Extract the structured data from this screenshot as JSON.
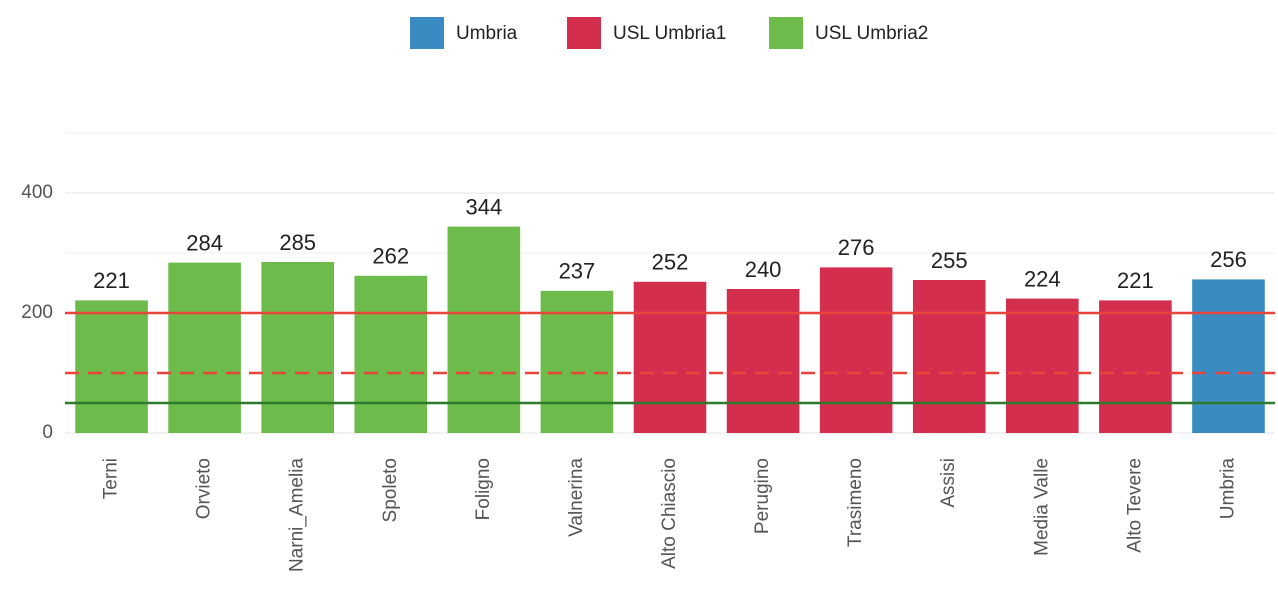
{
  "chart_data": {
    "type": "bar",
    "categories": [
      "Terni",
      "Orvieto",
      "Narni_Amelia",
      "Spoleto",
      "Foligno",
      "Valnerina",
      "Alto Chiascio",
      "Perugino",
      "Trasimeno",
      "Assisi",
      "Media Valle",
      "Alto Tevere",
      "Umbria"
    ],
    "series": [
      {
        "name": "Umbria",
        "color": "#3a8bc2",
        "values": [
          null,
          null,
          null,
          null,
          null,
          null,
          null,
          null,
          null,
          null,
          null,
          null,
          256
        ]
      },
      {
        "name": "USL Umbria1",
        "color": "#d42e4e",
        "values": [
          null,
          null,
          null,
          null,
          null,
          null,
          252,
          240,
          276,
          255,
          224,
          221,
          null
        ]
      },
      {
        "name": "USL Umbria2",
        "color": "#6dbb4b",
        "values": [
          221,
          284,
          285,
          262,
          344,
          237,
          null,
          null,
          null,
          null,
          null,
          null,
          null
        ]
      }
    ],
    "ylim": [
      0,
      500
    ],
    "yticks": [
      0,
      200,
      400
    ],
    "minor_grid": [
      100,
      300,
      500
    ],
    "grid": true,
    "hlines": [
      {
        "value": 200,
        "color": "#e8443a",
        "style": "solid"
      },
      {
        "value": 100,
        "color": "#e8443a",
        "style": "dashed"
      },
      {
        "value": 50,
        "color": "#2d7a2d",
        "style": "solid"
      }
    ],
    "legend": "top"
  }
}
